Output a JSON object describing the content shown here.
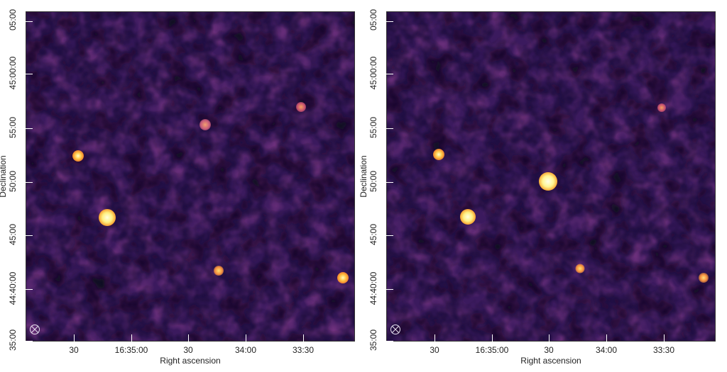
{
  "panels": [
    {
      "id": "left",
      "x_axis_title": "Right ascension",
      "y_axis_title": "Declination",
      "y_ticks": [
        "05:00",
        "45:00:00",
        "55:00",
        "50:00",
        "45:00",
        "44:40:00",
        "35:00"
      ],
      "x_ticks": [
        "30",
        "16:35:00",
        "30",
        "34:00",
        "33:30"
      ],
      "sources": [
        {
          "label": "source-upper-left",
          "brightness": "medium"
        },
        {
          "label": "source-mid-left",
          "brightness": "bright"
        },
        {
          "label": "source-upper-mid",
          "brightness": "faint"
        },
        {
          "label": "source-upper-right",
          "brightness": "faint"
        },
        {
          "label": "source-lower-mid",
          "brightness": "medium"
        },
        {
          "label": "source-lower-right",
          "brightness": "medium"
        }
      ]
    },
    {
      "id": "right",
      "x_axis_title": "Right ascension",
      "y_axis_title": "Declination",
      "y_ticks": [
        "05:00",
        "45:00:00",
        "55:00",
        "50:00",
        "45:00",
        "44:40:00",
        "35:00"
      ],
      "x_ticks": [
        "30",
        "16:35:00",
        "30",
        "34:00",
        "33:30"
      ],
      "sources": [
        {
          "label": "source-upper-left",
          "brightness": "medium"
        },
        {
          "label": "source-mid-left",
          "brightness": "bright"
        },
        {
          "label": "source-center",
          "brightness": "bright"
        },
        {
          "label": "source-upper-right",
          "brightness": "faint"
        },
        {
          "label": "source-lower-mid",
          "brightness": "medium"
        },
        {
          "label": "source-lower-right",
          "brightness": "medium"
        }
      ]
    }
  ],
  "colormap": {
    "background": "#3b1a5e",
    "dark": "#0d0820",
    "mid": "#6b2f7a",
    "bright": "#ffffb0",
    "glow": "#f5a030"
  }
}
